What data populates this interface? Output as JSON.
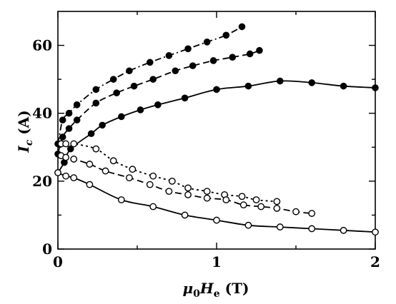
{
  "chart_data": {
    "type": "line",
    "title": "",
    "xlabel": {
      "main": "μ",
      "sub": "0",
      "main2": "H",
      "sub2": "e",
      "unit": " (T)"
    },
    "ylabel": {
      "main": "I",
      "sub": "c",
      "unit": " (A)"
    },
    "xlim": [
      0,
      2
    ],
    "ylim": [
      0,
      70
    ],
    "xticks": [
      0,
      1,
      2
    ],
    "xticks_minor": [
      0.5,
      1.5
    ],
    "yticks": [
      0,
      20,
      40,
      60
    ],
    "yticks_minor": [
      10,
      30,
      50
    ],
    "grid": false,
    "series": [
      {
        "marker": "filled",
        "linestyle": "dashdot",
        "x": [
          0,
          0.03,
          0.07,
          0.12,
          0.24,
          0.35,
          0.45,
          0.58,
          0.7,
          0.82,
          0.94,
          1.06,
          1.16
        ],
        "y": [
          31,
          38,
          40,
          42.5,
          47,
          50,
          52.5,
          55,
          57,
          59,
          61,
          63,
          65.5
        ]
      },
      {
        "marker": "filled",
        "linestyle": "dashed",
        "x": [
          0,
          0.03,
          0.07,
          0.12,
          0.24,
          0.37,
          0.48,
          0.6,
          0.74,
          0.85,
          0.98,
          1.1,
          1.21,
          1.27
        ],
        "y": [
          28,
          33,
          35.5,
          38,
          43,
          46,
          48,
          50,
          52.5,
          54,
          55.5,
          56.5,
          57.5,
          58.5
        ]
      },
      {
        "marker": "filled",
        "linestyle": "solid",
        "x": [
          0,
          0.04,
          0.08,
          0.21,
          0.28,
          0.4,
          0.52,
          0.63,
          0.8,
          1.0,
          1.2,
          1.4,
          1.6,
          1.8,
          2.0
        ],
        "y": [
          22.5,
          25.5,
          29.5,
          34,
          36.5,
          39,
          41,
          42.5,
          44.5,
          47,
          48,
          49.5,
          49,
          48,
          47.5
        ]
      },
      {
        "marker": "open",
        "linestyle": "dotted",
        "x": [
          0.02,
          0.05,
          0.1,
          0.24,
          0.35,
          0.47,
          0.6,
          0.72,
          0.82,
          0.94,
          1.05,
          1.16,
          1.25,
          1.38
        ],
        "y": [
          31,
          31,
          31,
          29.5,
          26,
          23.5,
          21.5,
          20,
          18,
          17,
          16,
          15.5,
          14.5,
          14
        ]
      },
      {
        "marker": "open",
        "linestyle": "dashed",
        "x": [
          0.02,
          0.05,
          0.1,
          0.2,
          0.3,
          0.45,
          0.58,
          0.7,
          0.82,
          0.94,
          1.06,
          1.17,
          1.28,
          1.38,
          1.5,
          1.6
        ],
        "y": [
          27.5,
          27,
          26.5,
          25,
          23,
          21,
          19,
          17,
          16,
          15,
          14.5,
          13,
          12.5,
          12,
          11,
          10.5
        ]
      },
      {
        "marker": "open",
        "linestyle": "solid",
        "x": [
          0,
          0.05,
          0.1,
          0.2,
          0.4,
          0.6,
          0.8,
          1.0,
          1.2,
          1.4,
          1.6,
          1.8,
          2.0
        ],
        "y": [
          22.5,
          21.5,
          21,
          19,
          14.5,
          12.5,
          10,
          8.5,
          7,
          6.5,
          6,
          5.5,
          5
        ]
      }
    ]
  }
}
